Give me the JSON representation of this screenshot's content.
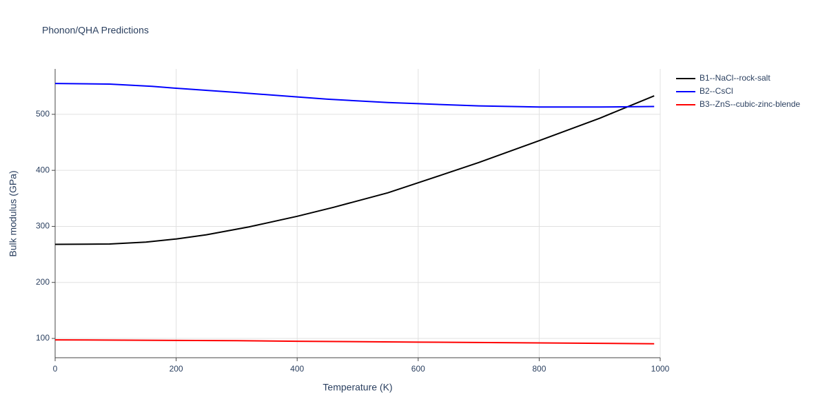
{
  "chart_data": {
    "type": "line",
    "title": "Phonon/QHA Predictions",
    "xlabel": "Temperature (K)",
    "ylabel": "Bulk modulus (GPa)",
    "xlim": [
      0,
      1000
    ],
    "ylim": [
      65.6,
      581
    ],
    "xticks": [
      0,
      200,
      400,
      600,
      800,
      1000
    ],
    "yticks": [
      100,
      200,
      300,
      400,
      500
    ],
    "grid": true,
    "legend": "right",
    "series": [
      {
        "name": "B1--NaCl--rock-salt",
        "color": "#000000",
        "x": [
          0,
          90,
          150,
          200,
          250,
          320,
          400,
          460,
          550,
          620,
          700,
          800,
          900,
          990
        ],
        "values": [
          268,
          268.5,
          272,
          277.5,
          285,
          299,
          318,
          334,
          360,
          385,
          414,
          453,
          493,
          533
        ]
      },
      {
        "name": "B2--CsCl",
        "color": "#0000ff",
        "x": [
          0,
          90,
          160,
          200,
          300,
          400,
          450,
          550,
          600,
          700,
          800,
          900,
          990
        ],
        "values": [
          555,
          554,
          550,
          546.5,
          539,
          531,
          527,
          521,
          519,
          515,
          513,
          513,
          514
        ]
      },
      {
        "name": "B3--ZnS--cubic-zinc-blende",
        "color": "#ff0000",
        "x": [
          0,
          200,
          300,
          400,
          600,
          800,
          880,
          990
        ],
        "values": [
          97.5,
          96.5,
          96,
          95,
          93.5,
          92,
          91.5,
          90.5
        ]
      }
    ]
  }
}
